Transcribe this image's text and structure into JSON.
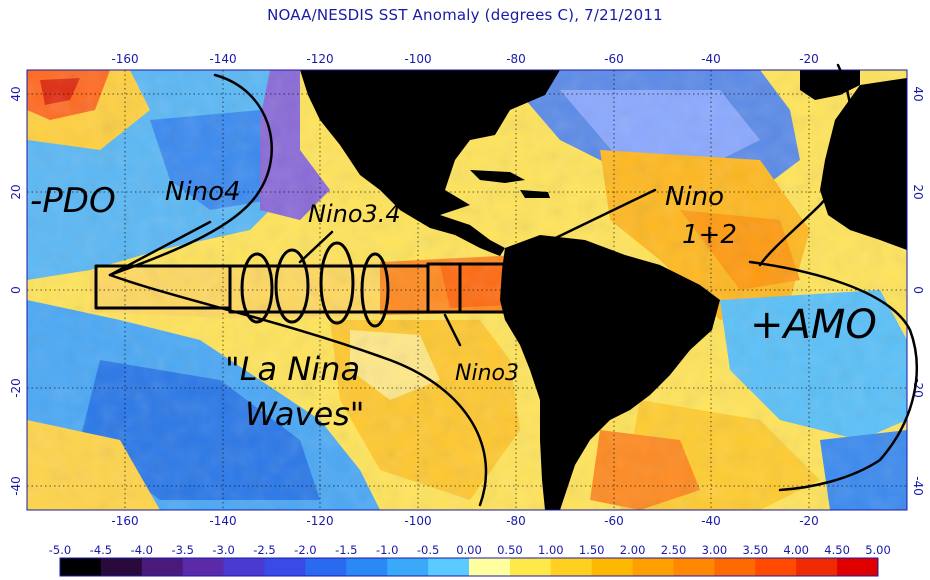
{
  "title": "NOAA/NESDIS SST Anomaly (degrees C), 7/21/2011",
  "map": {
    "lon_range": [
      -180,
      0
    ],
    "lat_range": [
      -45,
      45
    ],
    "lon_ticks": [
      -160,
      -140,
      -120,
      -100,
      -80,
      -60,
      -40,
      -20
    ],
    "lat_ticks": [
      40,
      20,
      0,
      -20,
      -40
    ],
    "grid": "dotted"
  },
  "colorbar": {
    "labels": [
      "-5.0",
      "-4.5",
      "-4.0",
      "-3.5",
      "-3.0",
      "-2.5",
      "-2.0",
      "-1.5",
      "-1.0",
      "-0.5",
      "0.00",
      "0.50",
      "1.00",
      "1.50",
      "2.00",
      "2.50",
      "3.00",
      "3.50",
      "4.00",
      "4.50",
      "5.00"
    ],
    "colors": [
      "#000000",
      "#2a0a3a",
      "#4a1a7a",
      "#5a2aa8",
      "#4a3ad0",
      "#3a4ae8",
      "#2a6af0",
      "#2a8af5",
      "#3aaaf8",
      "#5acaff",
      "#ffffa0",
      "#ffe84a",
      "#ffd020",
      "#ffb800",
      "#ffa000",
      "#ff8800",
      "#ff6a00",
      "#ff4a00",
      "#f02a00",
      "#e00000"
    ]
  },
  "annotations": {
    "pdo": "-PDO",
    "nino4": "Nino4",
    "nino34": "Nino3.4",
    "nino12_line1": "Nino",
    "nino12_line2": "1+2",
    "nino3": "Nino3",
    "lanina_line1": "\"La Nina",
    "lanina_line2": "Waves\"",
    "amo": "+AMO"
  }
}
